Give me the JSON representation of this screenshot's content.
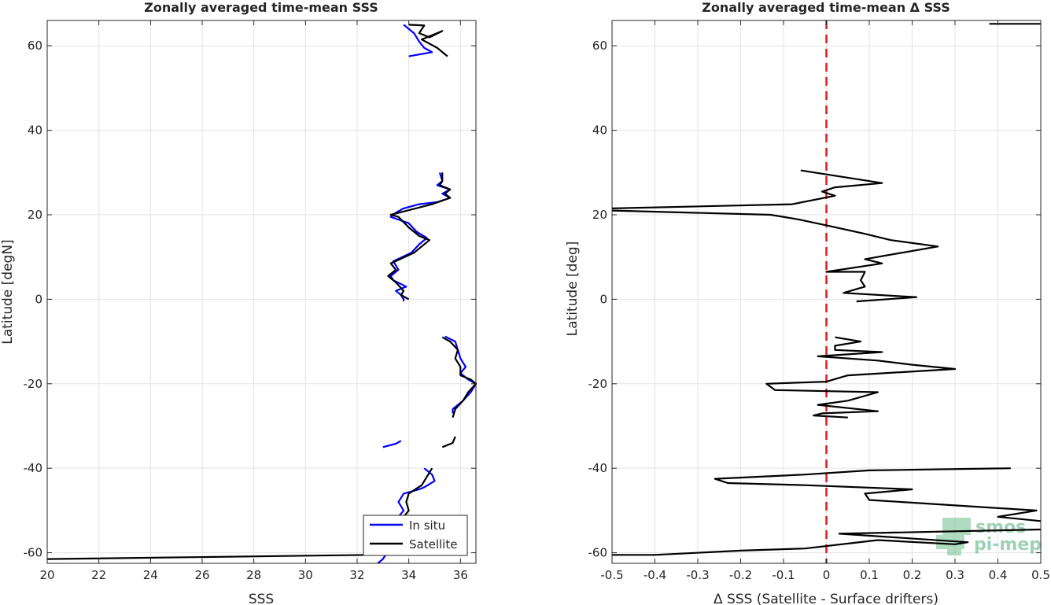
{
  "chart_data": [
    {
      "type": "line",
      "title": "Zonally averaged time-mean SSS",
      "xlabel": "SSS",
      "ylabel": "Latitude [degN]",
      "xlim": [
        20,
        36.6
      ],
      "ylim": [
        -62.5,
        66
      ],
      "xticks": [
        20,
        22,
        24,
        26,
        28,
        30,
        32,
        34,
        36
      ],
      "yticks": [
        -60,
        -40,
        -20,
        0,
        20,
        40,
        60
      ],
      "grid": true,
      "legend": {
        "placement": "bottom-right",
        "entries": [
          "In situ",
          "Satellite"
        ]
      },
      "series": [
        {
          "name": "In situ",
          "color": "#0000ff",
          "segments": [
            [
              [
                33.8,
                65
              ],
              [
                34.2,
                63
              ],
              [
                34.4,
                61
              ],
              [
                34.6,
                59.5
              ],
              [
                34.9,
                58.5
              ],
              [
                34.0,
                57.5
              ]
            ],
            [
              [
                35.2,
                30
              ],
              [
                35.3,
                28
              ],
              [
                35.1,
                27
              ],
              [
                35.6,
                26
              ],
              [
                35.3,
                25
              ],
              [
                35.6,
                24
              ],
              [
                35.1,
                23
              ],
              [
                34.4,
                22.5
              ],
              [
                33.8,
                21.5
              ],
              [
                33.5,
                20.5
              ],
              [
                33.3,
                19.5
              ],
              [
                34.0,
                18
              ],
              [
                34.3,
                16
              ],
              [
                34.7,
                14.5
              ],
              [
                34.4,
                13
              ],
              [
                34.1,
                11
              ],
              [
                33.4,
                9
              ],
              [
                33.6,
                7
              ],
              [
                33.3,
                5.5
              ],
              [
                33.4,
                4.5
              ],
              [
                33.9,
                3
              ],
              [
                33.5,
                2
              ],
              [
                33.7,
                1
              ],
              [
                33.8,
                0
              ],
              [
                33.8,
                -0.5
              ]
            ],
            [
              [
                35.4,
                -8.8
              ],
              [
                35.8,
                -10
              ],
              [
                35.9,
                -12
              ],
              [
                36.0,
                -14
              ],
              [
                36.2,
                -16
              ],
              [
                36.0,
                -17.5
              ],
              [
                36.3,
                -19
              ],
              [
                36.6,
                -20
              ],
              [
                36.4,
                -22
              ],
              [
                36.1,
                -24
              ],
              [
                35.7,
                -26
              ],
              [
                35.7,
                -27
              ]
            ],
            [
              [
                33.0,
                -35
              ],
              [
                33.5,
                -34.2
              ],
              [
                33.7,
                -33.5
              ]
            ],
            [
              [
                34.6,
                -40
              ],
              [
                34.9,
                -41.5
              ],
              [
                35.0,
                -43
              ],
              [
                34.6,
                -44.5
              ],
              [
                34.4,
                -45
              ],
              [
                33.8,
                -46
              ],
              [
                33.6,
                -48
              ],
              [
                33.8,
                -50
              ],
              [
                33.6,
                -51.5
              ],
              [
                33.5,
                -53
              ]
            ],
            [
              [
                33.1,
                -60.5
              ],
              [
                33.0,
                -61.5
              ],
              [
                32.8,
                -62.5
              ]
            ]
          ]
        },
        {
          "name": "Satellite",
          "color": "#000000",
          "segments": [
            [
              [
                34.0,
                65
              ],
              [
                34.6,
                64.8
              ],
              [
                34.4,
                63
              ],
              [
                34.8,
                62
              ],
              [
                35.3,
                63.5
              ],
              [
                34.5,
                61.5
              ],
              [
                35.1,
                59.5
              ],
              [
                35.5,
                57.5
              ]
            ],
            [
              [
                35.3,
                30
              ],
              [
                35.3,
                28
              ],
              [
                35.2,
                27
              ],
              [
                35.6,
                26
              ],
              [
                35.4,
                25
              ],
              [
                35.6,
                24
              ],
              [
                34.9,
                22.5
              ],
              [
                33.3,
                20
              ],
              [
                33.6,
                19.5
              ],
              [
                34.0,
                17
              ],
              [
                34.4,
                15
              ],
              [
                34.8,
                14
              ],
              [
                34.2,
                11
              ],
              [
                33.3,
                8.5
              ],
              [
                33.5,
                7
              ],
              [
                33.2,
                5.5
              ],
              [
                33.5,
                4
              ],
              [
                33.8,
                2
              ],
              [
                33.7,
                1
              ],
              [
                34.0,
                0
              ]
            ],
            [
              [
                35.3,
                -9
              ],
              [
                35.6,
                -10
              ],
              [
                35.9,
                -12
              ],
              [
                35.8,
                -14
              ],
              [
                36.0,
                -16
              ],
              [
                36.0,
                -18
              ],
              [
                36.4,
                -19
              ],
              [
                36.6,
                -20
              ],
              [
                36.3,
                -22
              ],
              [
                36.1,
                -24
              ],
              [
                35.8,
                -26
              ],
              [
                35.7,
                -28
              ]
            ],
            [
              [
                35.3,
                -35
              ],
              [
                35.7,
                -34
              ],
              [
                35.8,
                -32.5
              ]
            ],
            [
              [
                34.9,
                -40
              ],
              [
                34.5,
                -44
              ],
              [
                34.0,
                -46
              ],
              [
                33.9,
                -48
              ],
              [
                34.0,
                -50
              ],
              [
                33.8,
                -51.5
              ]
            ],
            [
              [
                32.8,
                -60
              ],
              [
                32.5,
                -60.5
              ],
              [
                20.0,
                -61.5
              ]
            ]
          ]
        }
      ]
    },
    {
      "type": "line",
      "title": "Zonally averaged time-mean Δ SSS",
      "xlabel": "Δ SSS (Satellite - Surface drifters)",
      "ylabel": "Latitude [deg]",
      "xlim": [
        -0.5,
        0.5
      ],
      "ylim": [
        -62.5,
        66
      ],
      "xticks": [
        -0.5,
        -0.4,
        -0.3,
        -0.2,
        -0.1,
        0,
        0.1,
        0.2,
        0.3,
        0.4,
        0.5
      ],
      "xticklabels": [
        "-0.5",
        "-0.4",
        "-0.3",
        "-0.2",
        "-0.1",
        "0",
        "0.1",
        "0.2",
        "0.3",
        "0.4",
        "0.5"
      ],
      "yticks": [
        -60,
        -40,
        -20,
        0,
        20,
        40,
        60
      ],
      "grid": true,
      "reference_line": {
        "x": 0,
        "color": "#e31a1c",
        "style": "dashed"
      },
      "logo_text": [
        "smos",
        "pi-mep"
      ],
      "series": [
        {
          "color": "#000000",
          "segments": [
            [
              [
                0.38,
                65.2
              ],
              [
                0.5,
                65.2
              ]
            ],
            [
              [
                -0.06,
                30.5
              ],
              [
                0.13,
                27.5
              ],
              [
                0.02,
                26.5
              ],
              [
                -0.01,
                25.5
              ],
              [
                0.02,
                24.5
              ],
              [
                -0.08,
                22.5
              ],
              [
                -0.5,
                21.5
              ]
            ],
            [
              [
                -0.5,
                21
              ],
              [
                -0.13,
                20
              ],
              [
                -0.07,
                19
              ],
              [
                0.0,
                17.5
              ],
              [
                0.09,
                15.5
              ],
              [
                0.15,
                14
              ],
              [
                0.26,
                12.5
              ],
              [
                0.09,
                9.5
              ],
              [
                0.13,
                8.5
              ],
              [
                0.0,
                6.5
              ],
              [
                0.09,
                6.5
              ],
              [
                0.08,
                4.5
              ],
              [
                0.09,
                3
              ],
              [
                0.04,
                1.5
              ],
              [
                0.21,
                0.5
              ],
              [
                0.07,
                -0.5
              ]
            ],
            [
              [
                0.02,
                -9
              ],
              [
                0.08,
                -10
              ],
              [
                0.02,
                -11
              ],
              [
                0.02,
                -12
              ],
              [
                0.13,
                -12.5
              ],
              [
                -0.02,
                -13.5
              ],
              [
                0.12,
                -14.5
              ],
              [
                0.2,
                -15.5
              ],
              [
                0.3,
                -16.5
              ],
              [
                0.05,
                -18
              ],
              [
                0.0,
                -19.5
              ],
              [
                -0.14,
                -20
              ],
              [
                -0.12,
                -21.5
              ],
              [
                0.12,
                -22
              ],
              [
                0.05,
                -24
              ],
              [
                -0.02,
                -25
              ],
              [
                0.12,
                -26.5
              ],
              [
                -0.01,
                -27
              ],
              [
                -0.03,
                -27.5
              ],
              [
                0.05,
                -28
              ]
            ],
            [
              [
                0.43,
                -40
              ],
              [
                0.1,
                -40.5
              ],
              [
                -0.05,
                -41.5
              ],
              [
                -0.26,
                -42.5
              ],
              [
                -0.23,
                -43.5
              ],
              [
                -0.05,
                -44
              ],
              [
                0.2,
                -45
              ],
              [
                0.09,
                -46
              ],
              [
                0.1,
                -47.5
              ],
              [
                0.49,
                -50
              ],
              [
                0.4,
                -51.5
              ],
              [
                0.5,
                -52.5
              ]
            ],
            [
              [
                0.5,
                -54.5
              ],
              [
                0.03,
                -55.5
              ],
              [
                0.33,
                -57.5
              ],
              [
                0.3,
                -58
              ],
              [
                0.12,
                -57
              ],
              [
                -0.05,
                -59
              ],
              [
                -0.2,
                -59.5
              ],
              [
                -0.4,
                -60.5
              ],
              [
                -0.5,
                -60.5
              ]
            ]
          ]
        }
      ]
    }
  ]
}
